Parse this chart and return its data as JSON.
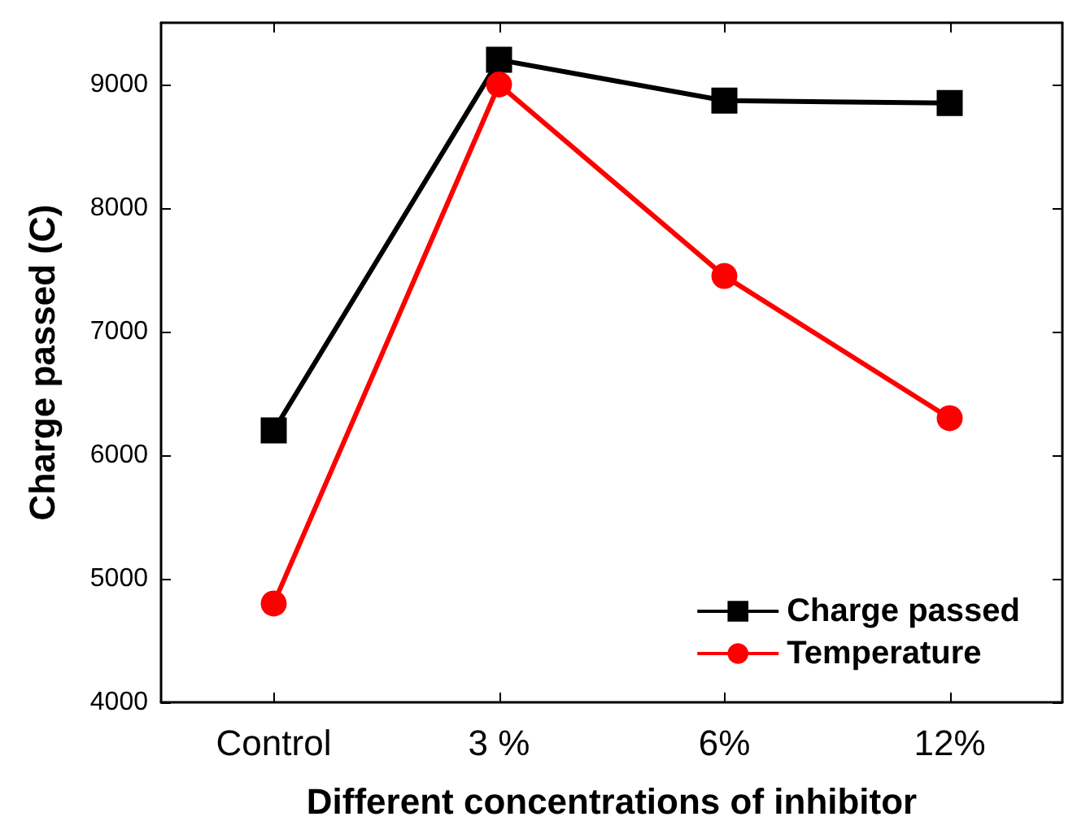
{
  "chart_data": {
    "type": "line",
    "xlabel": "Different concentrations of inhibitor",
    "ylabel": "Charge passed (C)",
    "categories": [
      "Control",
      "3 %",
      "6%",
      "12%"
    ],
    "series": [
      {
        "name": "Charge passed",
        "color": "#000000",
        "marker": "square",
        "values": [
          6200,
          9200,
          8870,
          8850
        ]
      },
      {
        "name": "Temperature",
        "color": "#ff0000",
        "marker": "circle",
        "values": [
          4800,
          9000,
          7450,
          6300
        ]
      }
    ],
    "ylim": [
      4000,
      9500
    ],
    "yticks": [
      4000,
      5000,
      6000,
      7000,
      8000,
      9000
    ],
    "grid": false,
    "legend": "bottom right",
    "line_style": "solid"
  }
}
